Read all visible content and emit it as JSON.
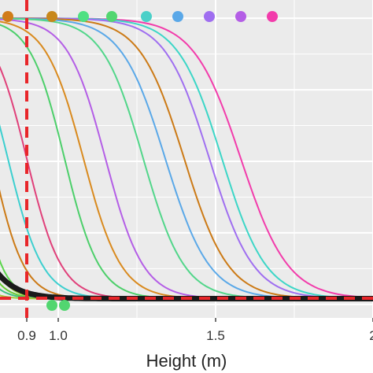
{
  "chart_data": {
    "type": "line",
    "title": "",
    "xlabel": "Height (m)",
    "ylabel": "",
    "xlim": [
      0.7,
      2.0
    ],
    "ylim": [
      -0.05,
      1.05
    ],
    "grid": true,
    "legend": "none",
    "x_ticks": [
      {
        "value": 0.9,
        "label": "0.9"
      },
      {
        "value": 1.0,
        "label": "1.0"
      },
      {
        "value": 1.5,
        "label": "1.5"
      },
      {
        "value": 2.0,
        "label": "2"
      }
    ],
    "colors": {
      "panel_background": "#ebebeb",
      "grid": "#ffffff",
      "reference_lines": "#e8262a",
      "mean_curve": "#1a1a1a"
    },
    "reference_lines": {
      "x": 0.9,
      "y": 0.02,
      "style": "dashed"
    },
    "series": [
      {
        "color": "#f23cab",
        "midpoint": 1.58,
        "scale": 0.075
      },
      {
        "color": "#3cd6c7",
        "midpoint": 1.52,
        "scale": 0.07
      },
      {
        "color": "#9f6ef0",
        "midpoint": 1.48,
        "scale": 0.07
      },
      {
        "color": "#cc7a16",
        "midpoint": 1.4,
        "scale": 0.07
      },
      {
        "color": "#5aa8e8",
        "midpoint": 1.34,
        "scale": 0.07
      },
      {
        "color": "#52d68a",
        "midpoint": 1.27,
        "scale": 0.065
      },
      {
        "color": "#b45ee6",
        "midpoint": 1.15,
        "scale": 0.06
      },
      {
        "color": "#d98a1e",
        "midpoint": 1.08,
        "scale": 0.06
      },
      {
        "color": "#4ccf6a",
        "midpoint": 1.02,
        "scale": 0.055
      },
      {
        "color": "#e0407a",
        "midpoint": 0.9,
        "scale": 0.055
      },
      {
        "color": "#3ccfcf",
        "midpoint": 0.84,
        "scale": 0.055
      },
      {
        "color": "#cc7a16",
        "midpoint": 0.79,
        "scale": 0.05
      },
      {
        "color": "#5bd64b",
        "midpoint": 0.74,
        "scale": 0.04
      },
      {
        "color": "#9ad63c",
        "midpoint": 0.72,
        "scale": 0.04
      },
      {
        "color": "#66cc33",
        "midpoint": 0.7,
        "scale": 0.04
      },
      {
        "color": "#40c080",
        "midpoint": 0.68,
        "scale": 0.04
      },
      {
        "color": "#a3c93a",
        "midpoint": 0.66,
        "scale": 0.035
      }
    ],
    "mean_curve": {
      "midpoint": 0.67,
      "scale": 0.06,
      "color": "#1a1a1a"
    },
    "top_points": [
      {
        "x": 0.72,
        "color": "#d17c19"
      },
      {
        "x": 0.76,
        "color": "#d17c19"
      },
      {
        "x": 0.84,
        "color": "#d17c19"
      },
      {
        "x": 0.98,
        "color": "#c8881c"
      },
      {
        "x": 1.08,
        "color": "#4ee083"
      },
      {
        "x": 1.17,
        "color": "#52d670"
      },
      {
        "x": 1.28,
        "color": "#4ad0c8"
      },
      {
        "x": 1.38,
        "color": "#5aa8e8"
      },
      {
        "x": 1.48,
        "color": "#9f6ef0"
      },
      {
        "x": 1.58,
        "color": "#b45ee6"
      },
      {
        "x": 1.68,
        "color": "#f23cab"
      }
    ],
    "bottom_points": [
      {
        "x": 0.78,
        "color": "#d17c19"
      },
      {
        "x": 0.98,
        "color": "#52d670"
      },
      {
        "x": 1.02,
        "color": "#52d670"
      }
    ]
  }
}
